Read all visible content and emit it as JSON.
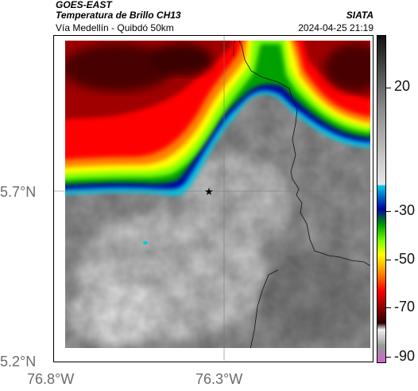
{
  "header": {
    "satellite": "GOES-EAST",
    "product": "Temperatura de Brillo CH13",
    "route": "Vía Medellín - Quibdó 50km",
    "agency": "SIATA",
    "datetime": "2024-04-25 21:19"
  },
  "map": {
    "lat_ticks": [
      "5.7°N",
      "5.2°N"
    ],
    "lon_ticks": [
      "76.8°W",
      "76.3°W"
    ],
    "marker_icon": "star-icon"
  },
  "colorbar": {
    "labels": [
      "20",
      "-30",
      "-50",
      "-70",
      "-90"
    ],
    "stops": [
      "#111111",
      "#8a8a8a",
      "#e8e8e8",
      "#00c8e6",
      "#0000a0",
      "#00a000",
      "#80ff00",
      "#ffff00",
      "#ff8000",
      "#ff0000",
      "#800000",
      "#2a0000",
      "#f0f0f0",
      "#cc66cc"
    ]
  }
}
